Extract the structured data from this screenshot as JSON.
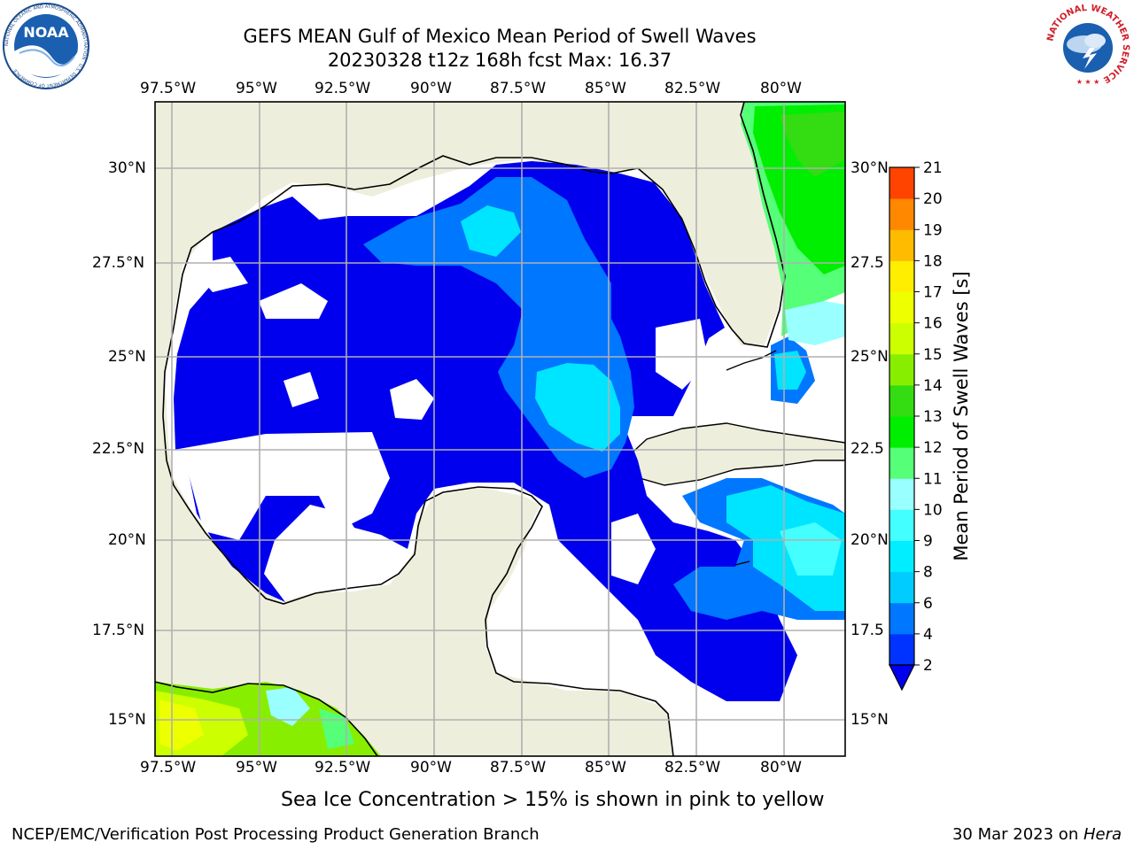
{
  "header": {
    "title_line1": "GEFS MEAN Gulf of Mexico Mean Period of Swell Waves",
    "title_line2": "20230328 t12z 168h fcst   Max: 16.37"
  },
  "logos": {
    "left": {
      "text": "NOAA",
      "ring_text": "NATIONAL OCEANIC AND ATMOSPHERIC ADMINISTRATION · U.S. DEPARTMENT OF COMMERCE"
    },
    "right": {
      "ring_text": "NATIONAL WEATHER SERVICE"
    }
  },
  "map": {
    "lon_ticks": [
      "97.5°W",
      "95°W",
      "92.5°W",
      "90°W",
      "87.5°W",
      "85°W",
      "82.5°W",
      "80°W"
    ],
    "lat_ticks_left": [
      "30°N",
      "27.5°N",
      "25°N",
      "22.5°N",
      "20°N",
      "17.5°N",
      "15°N"
    ],
    "lat_ticks_right": [
      "30°N",
      "27.5",
      "25°N",
      "22.5",
      "20°N",
      "17.5",
      "15°N"
    ],
    "colors": {
      "land": "#eeeedd",
      "ocean_missing": "#ffffff",
      "grid": "#b0b0b0"
    }
  },
  "colorbar": {
    "label": "Mean Period of Swell Waves [s]",
    "levels": [
      "2",
      "4",
      "6",
      "8",
      "9",
      "10",
      "11",
      "12",
      "13",
      "14",
      "15",
      "16",
      "17",
      "18",
      "19",
      "20",
      "21"
    ],
    "colors": [
      "#0033ff",
      "#0077ff",
      "#00ccff",
      "#00eeff",
      "#44ffff",
      "#99ffff",
      "#55ff77",
      "#00ee00",
      "#33dd11",
      "#88ee00",
      "#ccff00",
      "#eeff00",
      "#ffee00",
      "#ffbb00",
      "#ff8800",
      "#ff4400",
      "#ff0000"
    ],
    "extend_color": "#0000ee"
  },
  "caption": "Sea Ice Concentration > 15% is shown in pink to yellow",
  "footer": {
    "left": "NCEP/EMC/Verification Post Processing Product Generation Branch",
    "date": "30 Mar 2023 on ",
    "host": "Hera"
  }
}
